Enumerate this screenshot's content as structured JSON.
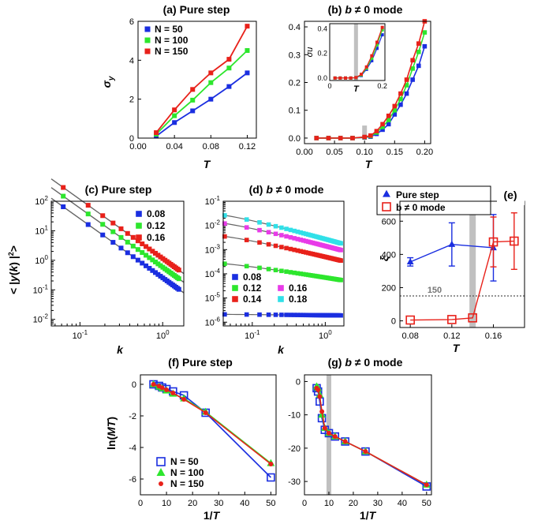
{
  "chart_data": [
    {
      "id": "a",
      "type": "line",
      "title": "(a) Pure step",
      "xlabel": "T",
      "ylabel": "σy",
      "xlim": [
        0,
        0.13
      ],
      "ylim": [
        0,
        6
      ],
      "xticks": [
        "0.00",
        "0.04",
        "0.08",
        "0.12"
      ],
      "yticks": [
        "0",
        "2",
        "4",
        "6"
      ],
      "legend": "top-left",
      "series": [
        {
          "name": "N = 50",
          "color": "#1a2ee0",
          "marker": "square",
          "x": [
            0.02,
            0.04,
            0.06,
            0.08,
            0.1,
            0.12
          ],
          "y": [
            0.1,
            0.8,
            1.4,
            2.0,
            2.65,
            3.35
          ]
        },
        {
          "name": "N = 100",
          "color": "#2de62d",
          "marker": "square",
          "x": [
            0.02,
            0.04,
            0.06,
            0.08,
            0.1,
            0.12
          ],
          "y": [
            0.2,
            1.15,
            1.95,
            2.85,
            3.6,
            4.5
          ]
        },
        {
          "name": "N = 150",
          "color": "#e8211a",
          "marker": "square",
          "x": [
            0.02,
            0.04,
            0.06,
            0.08,
            0.1,
            0.12
          ],
          "y": [
            0.28,
            1.45,
            2.5,
            3.35,
            4.05,
            5.75
          ]
        }
      ]
    },
    {
      "id": "b",
      "type": "line",
      "title": "(b) b ≠ 0 mode",
      "xlabel": "T",
      "ylabel": "",
      "xlim": [
        0,
        0.21
      ],
      "ylim": [
        -0.02,
        0.42
      ],
      "xticks": [
        "0.00",
        "0.05",
        "0.10",
        "0.15",
        "0.20"
      ],
      "yticks": [
        "0.0",
        "0.1",
        "0.2",
        "0.3",
        "0.4"
      ],
      "shade_x": 0.1,
      "series": [
        {
          "name": "N = 50",
          "color": "#1a2ee0",
          "marker": "square",
          "x": [
            0.02,
            0.04,
            0.06,
            0.08,
            0.1,
            0.11,
            0.12,
            0.13,
            0.14,
            0.15,
            0.16,
            0.17,
            0.18,
            0.19,
            0.2
          ],
          "y": [
            0,
            0,
            0,
            0,
            0.002,
            0.005,
            0.015,
            0.03,
            0.05,
            0.085,
            0.12,
            0.16,
            0.21,
            0.26,
            0.33
          ]
        },
        {
          "name": "N = 100",
          "color": "#2de62d",
          "marker": "square",
          "x": [
            0.02,
            0.04,
            0.06,
            0.08,
            0.1,
            0.11,
            0.12,
            0.13,
            0.14,
            0.15,
            0.16,
            0.17,
            0.18,
            0.19,
            0.2
          ],
          "y": [
            0,
            0,
            0,
            0,
            0.003,
            0.007,
            0.02,
            0.04,
            0.065,
            0.1,
            0.14,
            0.19,
            0.25,
            0.31,
            0.38
          ]
        },
        {
          "name": "N = 150",
          "color": "#e8211a",
          "marker": "square",
          "x": [
            0.02,
            0.04,
            0.06,
            0.08,
            0.1,
            0.11,
            0.12,
            0.13,
            0.14,
            0.15,
            0.16,
            0.17,
            0.18,
            0.19,
            0.2
          ],
          "y": [
            0,
            0,
            0,
            0,
            0.004,
            0.009,
            0.025,
            0.05,
            0.08,
            0.115,
            0.16,
            0.21,
            0.28,
            0.34,
            0.42
          ]
        }
      ],
      "inset": {
        "ylabel": "σu",
        "xlabel": "T",
        "xlim": [
          0,
          0.21
        ],
        "ylim": [
          -0.02,
          0.44
        ],
        "xticks": [
          "0",
          "0.2"
        ],
        "yticks": [
          "0.0",
          "0.2",
          "0.4"
        ],
        "shade_x": 0.1,
        "series": [
          {
            "name": "N = 50",
            "color": "#1a2ee0",
            "x": [
              0.02,
              0.04,
              0.06,
              0.08,
              0.1,
              0.12,
              0.14,
              0.16,
              0.18,
              0.2
            ],
            "y": [
              0,
              0,
              0,
              0,
              0.002,
              0.02,
              0.07,
              0.14,
              0.24,
              0.35
            ]
          },
          {
            "name": "N = 100",
            "color": "#2de62d",
            "x": [
              0.02,
              0.04,
              0.06,
              0.08,
              0.1,
              0.12,
              0.14,
              0.16,
              0.18,
              0.2
            ],
            "y": [
              0,
              0,
              0,
              0,
              0.003,
              0.025,
              0.08,
              0.16,
              0.27,
              0.39
            ]
          },
          {
            "name": "N = 150",
            "color": "#e8211a",
            "x": [
              0.02,
              0.04,
              0.06,
              0.08,
              0.1,
              0.12,
              0.14,
              0.16,
              0.18,
              0.2
            ],
            "y": [
              0,
              0,
              0,
              0,
              0.004,
              0.03,
              0.09,
              0.18,
              0.29,
              0.41
            ]
          }
        ]
      }
    },
    {
      "id": "c",
      "type": "scatter",
      "title": "(c) Pure step",
      "xlabel": "k",
      "ylabel": "< |y(k)|²>",
      "xscale": "log",
      "yscale": "log",
      "xlim": [
        0.045,
        1.8
      ],
      "ylim": [
        0.006,
        100
      ],
      "xticks": [
        {
          "v": 0.1,
          "label": "10",
          "exp": "-1"
        },
        {
          "v": 1,
          "label": "10",
          "exp": "0"
        }
      ],
      "yticks": [
        {
          "v": 0.01,
          "label": "10",
          "exp": "-2"
        },
        {
          "v": 0.1,
          "label": "10",
          "exp": "-1"
        },
        {
          "v": 1,
          "label": "10",
          "exp": "0"
        },
        {
          "v": 10,
          "label": "10",
          "exp": "1"
        },
        {
          "v": 100,
          "label": "10",
          "exp": "2"
        }
      ],
      "legend": "top-right",
      "series": [
        {
          "name": "0.08",
          "color": "#1a2ee0",
          "amp": 0.2562,
          "slope": -2
        },
        {
          "name": "0.12",
          "color": "#2de62d",
          "amp": 0.5856,
          "slope": -2
        },
        {
          "name": "0.16",
          "color": "#e8211a",
          "amp": 1.1529,
          "slope": -2
        }
      ],
      "x_start": 0.0628,
      "x_step": 0.0628,
      "x_end": 1.6
    },
    {
      "id": "d",
      "type": "scatter",
      "title": "(d) b ≠ 0 mode",
      "xlabel": "k",
      "ylabel": "",
      "xscale": "log",
      "yscale": "log",
      "xlim": [
        0.04,
        1.8
      ],
      "ylim": [
        7e-07,
        0.1
      ],
      "xticks": [
        {
          "v": 0.1,
          "label": "10",
          "exp": "-1"
        },
        {
          "v": 1,
          "label": "10",
          "exp": "0"
        }
      ],
      "yticks": [
        {
          "v": 1e-06,
          "label": "10",
          "exp": "-6"
        },
        {
          "v": 1e-05,
          "label": "10",
          "exp": "-5"
        },
        {
          "v": 0.0001,
          "label": "10",
          "exp": "-4"
        },
        {
          "v": 0.001,
          "label": "10",
          "exp": "-3"
        },
        {
          "v": 0.01,
          "label": "10",
          "exp": "-2"
        },
        {
          "v": 0.1,
          "label": "10",
          "exp": "-1"
        }
      ],
      "legend": "bottom",
      "series": [
        {
          "name": "0.08",
          "color": "#1a2ee0",
          "start": 2.1e-06,
          "end": 1.9e-06
        },
        {
          "name": "0.12",
          "color": "#2de62d",
          "start": 0.00026,
          "end": 5.5e-05
        },
        {
          "name": "0.14",
          "color": "#e8211a",
          "start": 0.0035,
          "end": 0.00035
        },
        {
          "name": "0.16",
          "color": "#e83ae8",
          "start": 0.012,
          "end": 0.00095
        },
        {
          "name": "0.18",
          "color": "#30e0e8",
          "start": 0.026,
          "end": 0.0018
        }
      ],
      "x_start": 0.0419,
      "x_step": 0.0419,
      "x_end": 1.65
    },
    {
      "id": "e",
      "type": "line",
      "title": "(e)",
      "xlabel": "T",
      "ylabel": "ξ",
      "xlim": [
        0.07,
        0.19
      ],
      "ylim": [
        -40,
        720
      ],
      "xticks": [
        "0.08",
        "0.12",
        "0.16"
      ],
      "xtick_values": [
        0.08,
        0.12,
        0.16
      ],
      "yticks": [
        "0",
        "200",
        "400",
        "600"
      ],
      "shade_x": 0.14,
      "refline": {
        "y": 150,
        "label": "150"
      },
      "legend": "top",
      "series": [
        {
          "name": "Pure step",
          "color": "#1a2ee0",
          "marker": "triangle",
          "x": [
            0.08,
            0.12,
            0.16
          ],
          "y": [
            355,
            460,
            440
          ],
          "err": [
            25,
            130,
            200
          ]
        },
        {
          "name": "b ≠ 0 mode",
          "color": "#e8211a",
          "marker": "open-square",
          "x": [
            0.08,
            0.12,
            0.14,
            0.16,
            0.18
          ],
          "y": [
            5,
            8,
            18,
            475,
            480
          ],
          "err": [
            0,
            0,
            0,
            150,
            170
          ]
        }
      ]
    },
    {
      "id": "f",
      "type": "line",
      "title": "(f) Pure step",
      "xlabel": "1/T",
      "ylabel": "ln(MT)",
      "xlim": [
        0,
        52
      ],
      "ylim": [
        -7,
        0.6
      ],
      "xticks": [
        "0",
        "10",
        "20",
        "30",
        "40",
        "50"
      ],
      "yticks": [
        "0",
        "-2",
        "-4",
        "-6"
      ],
      "legend": "bottom-left",
      "series": [
        {
          "name": "N = 50",
          "color": "#1a2ee0",
          "marker": "open-square",
          "x": [
            5,
            7.14,
            8.33,
            10,
            12.5,
            16.67,
            25,
            50
          ],
          "y": [
            0,
            -0.1,
            -0.2,
            -0.3,
            -0.45,
            -0.7,
            -1.8,
            -5.9
          ]
        },
        {
          "name": "N = 100",
          "color": "#2de62d",
          "marker": "triangle",
          "x": [
            5,
            7.14,
            8.33,
            10,
            12.5,
            16.67,
            25,
            50
          ],
          "y": [
            0,
            -0.15,
            -0.25,
            -0.4,
            -0.6,
            -0.9,
            -1.75,
            -5.0
          ]
        },
        {
          "name": "N = 150",
          "color": "#e8211a",
          "marker": "dot",
          "x": [
            5,
            7.14,
            8.33,
            10,
            12.5,
            16.67,
            25,
            50
          ],
          "y": [
            0,
            -0.12,
            -0.22,
            -0.35,
            -0.55,
            -0.95,
            -1.8,
            -5.05
          ]
        }
      ]
    },
    {
      "id": "g",
      "type": "line",
      "title": "(g) b ≠ 0 mode",
      "xlabel": "1/T",
      "ylabel": "",
      "xlim": [
        0,
        52
      ],
      "ylim": [
        -34,
        2
      ],
      "xticks": [
        "0",
        "10",
        "20",
        "30",
        "40",
        "50"
      ],
      "yticks": [
        "0",
        "-10",
        "-20",
        "-30"
      ],
      "shade_x": 10,
      "series": [
        {
          "name": "N = 50",
          "color": "#1a2ee0",
          "marker": "open-square",
          "x": [
            5,
            5.56,
            6.25,
            7.14,
            8.33,
            10,
            12.5,
            16.67,
            25,
            50
          ],
          "y": [
            -2,
            -3,
            -6,
            -11,
            -14.5,
            -15.5,
            -16.5,
            -18,
            -21,
            -31.5
          ]
        },
        {
          "name": "N = 100",
          "color": "#2de62d",
          "marker": "triangle",
          "x": [
            5,
            5.56,
            6.25,
            7.14,
            8.33,
            10,
            12.5,
            16.67,
            25,
            50
          ],
          "y": [
            -1.5,
            -2,
            -4,
            -10,
            -14,
            -15.5,
            -16.5,
            -18,
            -21,
            -31
          ]
        },
        {
          "name": "N = 150",
          "color": "#e8211a",
          "marker": "dot",
          "x": [
            5,
            5.56,
            6.25,
            7.14,
            8.33,
            10,
            12.5,
            16.67,
            25,
            50
          ],
          "y": [
            -2,
            -2.5,
            -4.5,
            -9,
            -14,
            -15.5,
            -16.5,
            -18,
            -21,
            -31
          ]
        }
      ]
    }
  ]
}
